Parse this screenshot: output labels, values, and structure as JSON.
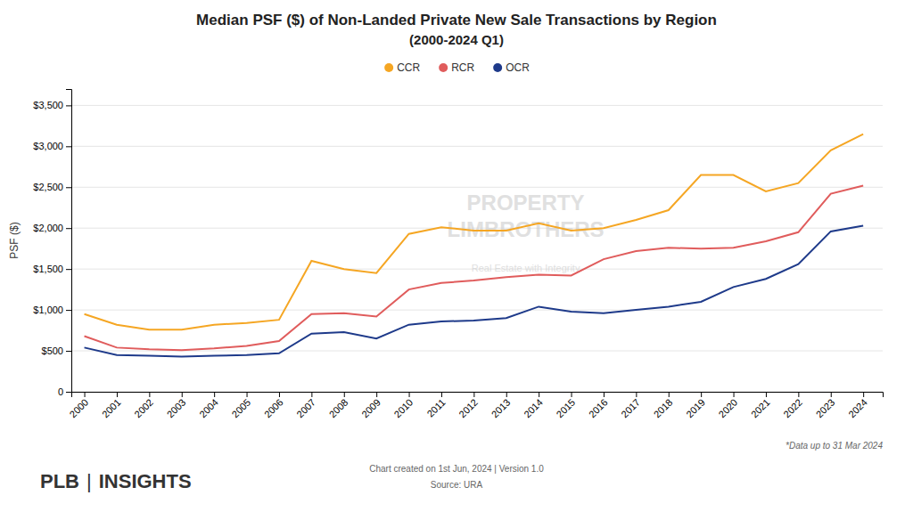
{
  "chart_data": {
    "type": "line",
    "title": "Median PSF ($) of Non-Landed Private New Sale Transactions by Region",
    "subtitle": "(2000-2024 Q1)",
    "ylabel": "PSF ($)",
    "annotations": [
      "*Data up to 31 Mar 2024",
      "Chart created on 1st Jun, 2024 | Version 1.0",
      "Source: URA",
      "PROPERTY",
      "LIMBROTHERS",
      "Real Estate with Integrity",
      "PLB",
      "|",
      "INSIGHTS"
    ],
    "x": [
      2000,
      2001,
      2002,
      2003,
      2004,
      2005,
      2006,
      2007,
      2008,
      2009,
      2010,
      2011,
      2012,
      2013,
      2014,
      2015,
      2016,
      2017,
      2018,
      2019,
      2020,
      2021,
      2022,
      2023,
      2024
    ],
    "series": [
      {
        "name": "CCR",
        "color": "#f5a623",
        "values": [
          950,
          820,
          760,
          760,
          820,
          840,
          880,
          1600,
          1500,
          1450,
          1930,
          2010,
          1970,
          1970,
          2060,
          1970,
          2000,
          2100,
          2220,
          2650,
          2650,
          2450,
          2550,
          2950,
          3150
        ]
      },
      {
        "name": "RCR",
        "color": "#e05c5c",
        "values": [
          680,
          540,
          520,
          510,
          530,
          560,
          620,
          950,
          960,
          920,
          1250,
          1330,
          1360,
          1400,
          1430,
          1420,
          1620,
          1720,
          1760,
          1750,
          1760,
          1840,
          1950,
          2420,
          2520
        ]
      },
      {
        "name": "OCR",
        "color": "#1e3a8a",
        "values": [
          540,
          450,
          440,
          430,
          440,
          450,
          470,
          710,
          730,
          650,
          820,
          860,
          870,
          900,
          1040,
          980,
          960,
          1000,
          1040,
          1100,
          1280,
          1380,
          1560,
          1960,
          2030
        ]
      }
    ],
    "xlim": [
      1999.6,
      2024.6
    ],
    "xticks": [
      2000,
      2001,
      2002,
      2003,
      2004,
      2005,
      2006,
      2007,
      2008,
      2009,
      2010,
      2011,
      2012,
      2013,
      2014,
      2015,
      2016,
      2017,
      2018,
      2019,
      2020,
      2021,
      2022,
      2023,
      2024
    ],
    "ylim": [
      0,
      3700
    ],
    "yticks": [
      0,
      {
        "value": 500,
        "label": "$500"
      },
      {
        "value": 1000,
        "label": "$1,000"
      },
      {
        "value": 1500,
        "label": "$1,500"
      },
      {
        "value": 2000,
        "label": "$2,000"
      },
      {
        "value": 2500,
        "label": "$2,500"
      },
      {
        "value": 3000,
        "label": "$3,000"
      },
      {
        "value": 3500,
        "label": "$3,500"
      }
    ],
    "grid": true,
    "legend": "top"
  }
}
